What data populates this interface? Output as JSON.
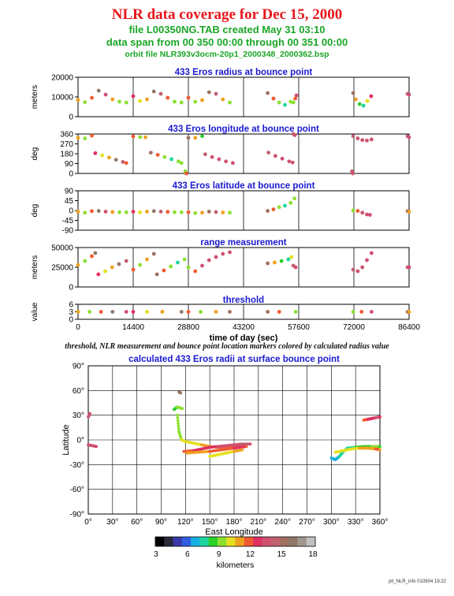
{
  "header": {
    "title": "NLR data coverage for Dec 15, 2000",
    "line1": "file L00350NG.TAB created May 31 03:10",
    "line2": "data span from 00 350 00:00 through 00 351 00:00",
    "line3": "orbit file NLR393v3ocm-20p1_2000348_2000362.bsp"
  },
  "caption": "threshold, NLR measurement and bounce point location markers colored by calculated radius value",
  "footer": "plt_NLR_info 010904 19:22",
  "colors": {
    "title": "#e8161b",
    "subtitle": "#1aa626",
    "panel_title": "#1a1ad0"
  },
  "chart_data": [
    {
      "type": "scatter",
      "title": "433 Eros radius at bounce point",
      "ylabel": "meters",
      "ylim": [
        0,
        25000
      ],
      "yticks": [
        "0",
        "10000",
        "20000"
      ],
      "xlim": [
        0,
        86400
      ],
      "grid": "vertical",
      "series": [
        {
          "x": [
            0,
            1800,
            3600,
            5400,
            7200,
            9000,
            10800,
            12600
          ],
          "y": [
            10500,
            9200,
            12000,
            16500,
            14000,
            11000,
            9500,
            9000
          ]
        },
        {
          "x": [
            14400,
            16200,
            18000,
            19800,
            21600,
            23400,
            25200,
            27000
          ],
          "y": [
            13000,
            10000,
            11000,
            16000,
            14500,
            12000,
            9500,
            9000
          ]
        },
        {
          "x": [
            28800,
            30600,
            32400,
            34200,
            36000,
            37800,
            39600
          ],
          "y": [
            12000,
            9500,
            10500,
            15500,
            14500,
            11000,
            9000
          ]
        },
        {
          "x": [
            49500,
            51000,
            52500,
            54000,
            55500
          ],
          "y": [
            15000,
            11500,
            9000,
            7500,
            9500
          ]
        },
        {
          "x": [
            56200,
            56700,
            57000
          ],
          "y": [
            9000,
            11500,
            13500
          ]
        },
        {
          "x": [
            71800,
            72500,
            73500,
            74500,
            75500,
            76500
          ],
          "y": [
            15000,
            11000,
            8000,
            7000,
            10000,
            13000
          ]
        },
        {
          "x": [
            86000,
            86400
          ],
          "y": [
            14500,
            14000
          ]
        }
      ]
    },
    {
      "type": "scatter",
      "title": "433 Eros longitude at bounce point",
      "ylabel": "deg",
      "ylim": [
        0,
        360
      ],
      "yticks": [
        "0",
        "90",
        "180",
        "270",
        "360"
      ],
      "xlim": [
        0,
        86400
      ],
      "grid": "vertical",
      "series": [
        {
          "x": [
            0,
            1800,
            3600
          ],
          "y": [
            325,
            320,
            345
          ]
        },
        {
          "x": [
            4500,
            6300,
            8100,
            9900,
            11700,
            12600
          ],
          "y": [
            185,
            165,
            145,
            125,
            105,
            95
          ]
        },
        {
          "x": [
            14400,
            16200,
            17600
          ],
          "y": [
            338,
            332,
            330
          ]
        },
        {
          "x": [
            19000,
            20800,
            22600,
            24400,
            26200,
            27000
          ],
          "y": [
            190,
            170,
            150,
            130,
            110,
            95
          ]
        },
        {
          "x": [
            28000,
            28300
          ],
          "y": [
            20,
            0
          ]
        },
        {
          "x": [
            28800,
            30600,
            32400
          ],
          "y": [
            325,
            325,
            340
          ]
        },
        {
          "x": [
            33200,
            35000,
            36800,
            38600,
            40400
          ],
          "y": [
            175,
            150,
            130,
            110,
            95
          ]
        },
        {
          "x": [
            49700,
            51500,
            53300,
            55100,
            56000
          ],
          "y": [
            190,
            160,
            135,
            110,
            100
          ]
        },
        {
          "x": [
            56200,
            56600
          ],
          "y": [
            360,
            350
          ]
        },
        {
          "x": [
            71800,
            73000,
            74200,
            75400,
            76600
          ],
          "y": [
            340,
            320,
            305,
            300,
            310
          ]
        },
        {
          "x": [
            71500,
            71700
          ],
          "y": [
            20,
            0
          ]
        },
        {
          "x": [
            86000,
            86400
          ],
          "y": [
            340,
            330
          ]
        }
      ]
    },
    {
      "type": "scatter",
      "title": "433 Eros latitude at bounce point",
      "ylabel": "deg",
      "ylim": [
        -90,
        90
      ],
      "yticks": [
        "-90",
        "-45",
        "0",
        "45",
        "90"
      ],
      "xlim": [
        0,
        86400
      ],
      "grid": "vertical",
      "series": [
        {
          "x": [
            0,
            1800,
            3600,
            5400,
            7200,
            9000,
            10800,
            12600
          ],
          "y": [
            -5,
            -10,
            -3,
            -2,
            -5,
            -7,
            -8,
            -8
          ]
        },
        {
          "x": [
            14400,
            16200,
            18000,
            19800,
            21600,
            23400,
            25200,
            27000
          ],
          "y": [
            -5,
            -8,
            -5,
            -3,
            -5,
            -6,
            -8,
            -8
          ]
        },
        {
          "x": [
            28800,
            30600,
            32400,
            34200,
            36000,
            37800,
            39600
          ],
          "y": [
            -8,
            -12,
            -10,
            -5,
            -7,
            -9,
            -10
          ]
        },
        {
          "x": [
            49500,
            51000,
            52500,
            54000,
            55500,
            56500
          ],
          "y": [
            -2,
            5,
            15,
            22,
            35,
            55
          ]
        },
        {
          "x": [
            71800,
            73000,
            74200,
            75400,
            76200
          ],
          "y": [
            0,
            -2,
            -10,
            -18,
            -20
          ]
        },
        {
          "x": [
            86000,
            86400
          ],
          "y": [
            -3,
            -5
          ]
        }
      ]
    },
    {
      "type": "scatter",
      "title": "range measurement",
      "ylabel": "meters",
      "ylim": [
        0,
        50000
      ],
      "yticks": [
        "0",
        "25000",
        "50000"
      ],
      "xlim": [
        0,
        86400
      ],
      "grid": "vertical",
      "series": [
        {
          "x": [
            0,
            1800,
            3600,
            4500
          ],
          "y": [
            28000,
            33000,
            39000,
            43000
          ]
        },
        {
          "x": [
            5300,
            7100,
            8900,
            10700,
            12600
          ],
          "y": [
            16000,
            20000,
            25000,
            29000,
            33000
          ]
        },
        {
          "x": [
            14400,
            16200,
            18000,
            19800
          ],
          "y": [
            22000,
            28000,
            35000,
            42000
          ]
        },
        {
          "x": [
            20600,
            22400,
            24200,
            26000,
            27800
          ],
          "y": [
            16000,
            21000,
            26000,
            31000,
            35000
          ]
        },
        {
          "x": [
            28800,
            30600,
            32400,
            34200,
            36000,
            37800,
            39600
          ],
          "y": [
            25000,
            20000,
            27000,
            34000,
            38000,
            42000,
            44000
          ]
        },
        {
          "x": [
            49500,
            51300,
            53100,
            54900,
            55700
          ],
          "y": [
            30000,
            31000,
            33000,
            35000,
            38000
          ]
        },
        {
          "x": [
            56200,
            56800
          ],
          "y": [
            27000,
            25000
          ]
        },
        {
          "x": [
            71800,
            73000,
            74200,
            75400,
            76600
          ],
          "y": [
            22000,
            20000,
            25000,
            34000,
            43000
          ]
        },
        {
          "x": [
            86000,
            86400
          ],
          "y": [
            25000,
            25000
          ]
        }
      ]
    },
    {
      "type": "scatter",
      "title": "threshold",
      "ylabel": "value",
      "ylim": [
        0,
        6
      ],
      "yticks": [
        "0",
        "3",
        "6"
      ],
      "xlim": [
        0,
        86400
      ],
      "xticks": [
        "0",
        "14400",
        "28800",
        "43200",
        "57600",
        "72000",
        "86400"
      ],
      "xlabel": "time of day (sec)",
      "grid": "vertical",
      "series": [
        {
          "x": [
            0,
            3000,
            6000,
            9000,
            12600
          ],
          "y": [
            3,
            3,
            3,
            3,
            3
          ]
        },
        {
          "x": [
            14400,
            18000,
            22000,
            27000
          ],
          "y": [
            3,
            3,
            3,
            3
          ]
        },
        {
          "x": [
            28800,
            32000,
            36000,
            39600
          ],
          "y": [
            3,
            3,
            3,
            3
          ]
        },
        {
          "x": [
            49500,
            52500,
            56800
          ],
          "y": [
            3,
            3,
            3
          ]
        },
        {
          "x": [
            71800,
            74000,
            76600
          ],
          "y": [
            3,
            3,
            3
          ]
        },
        {
          "x": [
            86000,
            86400
          ],
          "y": [
            3,
            3
          ]
        }
      ]
    },
    {
      "type": "scatter",
      "title": "calculated 433 Eros radii at surface bounce point",
      "xlabel": "East Longitude",
      "ylabel": "Latitude",
      "xlim": [
        0,
        360
      ],
      "ylim": [
        -90,
        90
      ],
      "xticks": [
        "0°",
        "30°",
        "60°",
        "90°",
        "120°",
        "150°",
        "180°",
        "210°",
        "240°",
        "270°",
        "300°",
        "330°",
        "360°"
      ],
      "yticks": [
        "-90°",
        "-60°",
        "-30°",
        "0°",
        "30°",
        "60°",
        "90°"
      ],
      "grid": "both",
      "series": [
        {
          "x": [
            0,
            2
          ],
          "y": [
            28,
            32
          ]
        },
        {
          "x": [
            0,
            5,
            10
          ],
          "y": [
            -6,
            -7,
            -8
          ]
        },
        {
          "x": [
            112,
            114
          ],
          "y": [
            58,
            57
          ]
        },
        {
          "x": [
            106,
            110,
            116
          ],
          "y": [
            37,
            40,
            38
          ]
        },
        {
          "x": [
            110,
            112,
            115,
            120,
            130,
            140,
            150,
            160,
            170,
            180,
            190
          ],
          "y": [
            30,
            10,
            0,
            -2,
            -4,
            -6,
            -8,
            -9,
            -9,
            -8,
            -7
          ]
        },
        {
          "x": [
            118,
            130,
            140,
            150,
            160,
            170,
            180,
            190,
            200
          ],
          "y": [
            -14,
            -13,
            -11,
            -9,
            -8,
            -7,
            -6,
            -5,
            -5
          ]
        },
        {
          "x": [
            122,
            135,
            150,
            165,
            180,
            195
          ],
          "y": [
            -16,
            -15,
            -14,
            -12,
            -10,
            -8
          ]
        },
        {
          "x": [
            150,
            160,
            170,
            180,
            190
          ],
          "y": [
            -20,
            -18,
            -16,
            -14,
            -12
          ]
        },
        {
          "x": [
            300,
            305,
            310,
            315,
            320,
            330,
            340,
            350,
            360
          ],
          "y": [
            -22,
            -24,
            -20,
            -14,
            -10,
            -9,
            -8,
            -8,
            -8
          ]
        },
        {
          "x": [
            305,
            315,
            325,
            335,
            345,
            355,
            360
          ],
          "y": [
            -15,
            -13,
            -11,
            -10,
            -10,
            -11,
            -12
          ]
        },
        {
          "x": [
            340,
            345,
            350,
            355,
            360
          ],
          "y": [
            24,
            25,
            26,
            27,
            28
          ]
        }
      ]
    }
  ],
  "colorbar": {
    "label": "kilometers",
    "ticks": [
      "3",
      "6",
      "9",
      "12",
      "15",
      "18"
    ],
    "colors": [
      "#000000",
      "#2a2a3a",
      "#3a3aa8",
      "#2f5fe0",
      "#18b0e0",
      "#1dd6a0",
      "#2ad02a",
      "#8ce030",
      "#e6e020",
      "#f0a020",
      "#f05a30",
      "#e03060",
      "#d05070",
      "#c06070",
      "#a07060",
      "#907868",
      "#a09890",
      "#c0c0c0"
    ]
  }
}
